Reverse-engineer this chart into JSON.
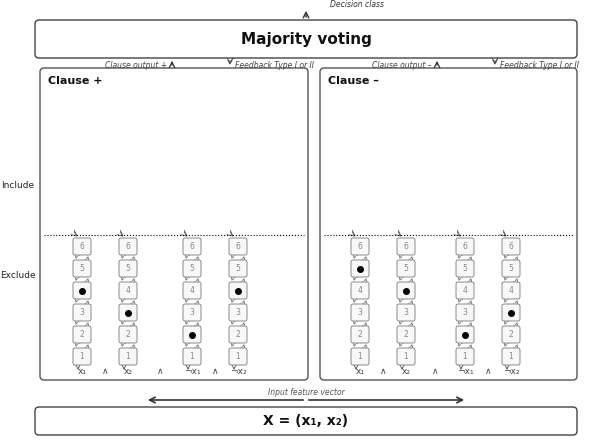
{
  "title_mv": "Majority voting",
  "title_xvec": "X = (x₁, x₂)",
  "clause_plus_label": "Clause +",
  "clause_minus_label": "Clause –",
  "include_label": "Include",
  "exclude_label": "Exclude",
  "decision_class": "Decision class",
  "input_feature_vector": "Input feature vector",
  "clause_output_plus": "Clause output +",
  "clause_output_minus": "Clause output –",
  "feedback_type_1": "Feedback Type I or II",
  "feedback_type_2": "Feedback Type I or II",
  "x_labels_plus": [
    "x₁",
    "∧",
    "x₂",
    "∧",
    "¬x₁",
    "∧",
    "¬x₂"
  ],
  "x_labels_minus": [
    "x₁",
    "∧",
    "x₂",
    "∧",
    "¬x₁",
    "∧",
    "¬x₂"
  ],
  "clause_plus_dots": [
    4,
    3,
    2,
    4
  ],
  "clause_minus_dots": [
    5,
    4,
    2,
    3
  ],
  "bg_color": "#ffffff"
}
